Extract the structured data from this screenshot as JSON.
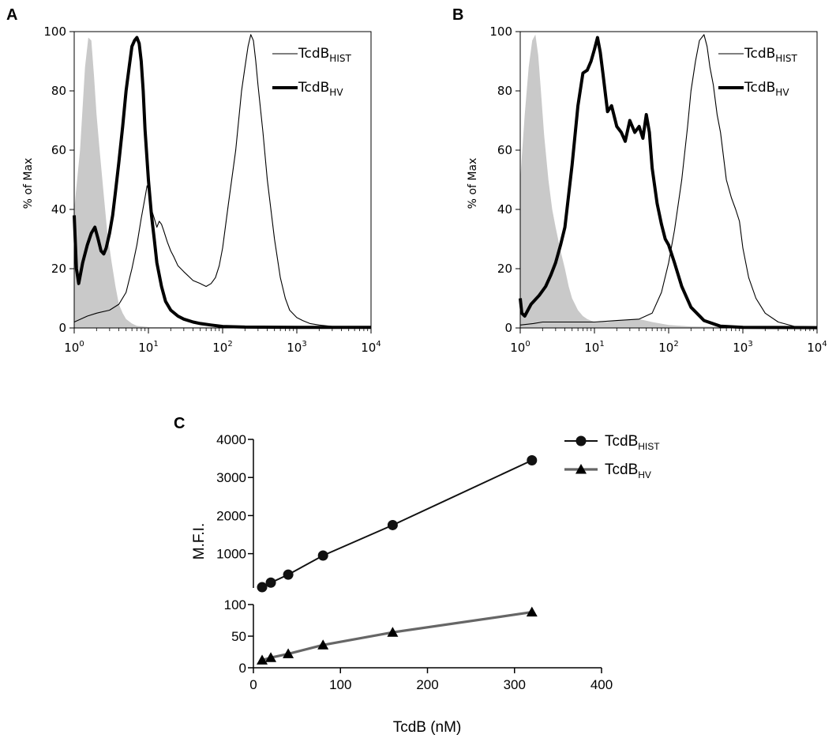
{
  "chart_data": [
    {
      "panel": "A",
      "type": "area",
      "ylabel": "% of Max",
      "ylim": [
        0,
        100
      ],
      "yticks": [
        "0",
        "20",
        "40",
        "60",
        "80",
        "100"
      ],
      "xscale": "log",
      "xlim": [
        1,
        10000
      ],
      "xticks": [
        {
          "base": "10",
          "exp": "0"
        },
        {
          "base": "10",
          "exp": "1"
        },
        {
          "base": "10",
          "exp": "2"
        },
        {
          "base": "10",
          "exp": "3"
        },
        {
          "base": "10",
          "exp": "4"
        }
      ],
      "legend": [
        {
          "base": "TcdB",
          "sub": "HIST",
          "style": "thin"
        },
        {
          "base": "TcdB",
          "sub": "HV",
          "style": "thick"
        }
      ],
      "series": [
        {
          "style": "filled-gray",
          "x": [
            1.0,
            1.2,
            1.4,
            1.55,
            1.7,
            1.85,
            2.0,
            2.2,
            2.5,
            2.8,
            3.2,
            3.6,
            4.0,
            4.5,
            5.0,
            6.0,
            7.0,
            10,
            100,
            10000
          ],
          "y": [
            40,
            60,
            88,
            98,
            97,
            85,
            72,
            60,
            45,
            32,
            22,
            14,
            8,
            5,
            3,
            1.5,
            0.7,
            0.3,
            0.2,
            0.2
          ]
        },
        {
          "name": "TcdB_HIST",
          "style": "thin",
          "x": [
            1.0,
            1.5,
            2.0,
            3.0,
            4.0,
            5.0,
            6.0,
            7.0,
            8.0,
            9.0,
            9.6,
            10,
            10.5,
            11,
            12,
            13,
            14,
            15,
            16,
            18,
            20,
            22,
            25,
            30,
            40,
            50,
            60,
            70,
            80,
            90,
            100,
            120,
            150,
            180,
            200,
            220,
            240,
            260,
            280,
            300,
            350,
            400,
            500,
            600,
            700,
            800,
            1000,
            1200,
            1500,
            2000,
            3000,
            5000,
            10000
          ],
          "y": [
            2,
            4,
            5,
            6,
            8,
            12,
            20,
            28,
            37,
            44,
            48,
            47,
            44,
            40,
            37,
            34,
            36,
            35,
            33,
            29,
            26,
            24,
            21,
            19,
            16,
            15,
            14,
            15,
            17,
            21,
            27,
            42,
            60,
            80,
            88,
            95,
            99,
            97,
            90,
            82,
            66,
            50,
            30,
            17,
            10,
            6,
            3.5,
            2.5,
            1.5,
            1,
            0.5,
            0.2,
            0
          ]
        },
        {
          "name": "TcdB_HV",
          "style": "thick",
          "x": [
            1.0,
            1.07,
            1.15,
            1.3,
            1.5,
            1.7,
            1.9,
            2.1,
            2.3,
            2.5,
            2.7,
            3.0,
            3.3,
            3.6,
            4.0,
            4.5,
            5.0,
            5.5,
            6.0,
            6.5,
            7.0,
            7.5,
            8.0,
            8.5,
            9.0,
            10,
            11,
            12,
            13,
            15,
            17,
            20,
            25,
            30,
            40,
            50,
            70,
            100,
            200,
            1000,
            10000
          ],
          "y": [
            38,
            20,
            15,
            22,
            28,
            32,
            34,
            30,
            26,
            25,
            27,
            32,
            38,
            46,
            56,
            68,
            80,
            88,
            95,
            97,
            98,
            96,
            90,
            80,
            67,
            50,
            38,
            30,
            22,
            14,
            9,
            6,
            4,
            3,
            2,
            1.5,
            1,
            0.5,
            0.3,
            0.2,
            0.2
          ]
        }
      ]
    },
    {
      "panel": "B",
      "type": "area",
      "ylabel": "% of Max",
      "ylim": [
        0,
        100
      ],
      "yticks": [
        "0",
        "20",
        "40",
        "60",
        "80",
        "100"
      ],
      "xscale": "log",
      "xlim": [
        1,
        10000
      ],
      "xticks": [
        {
          "base": "10",
          "exp": "0"
        },
        {
          "base": "10",
          "exp": "1"
        },
        {
          "base": "10",
          "exp": "2"
        },
        {
          "base": "10",
          "exp": "3"
        },
        {
          "base": "10",
          "exp": "4"
        }
      ],
      "legend": [
        {
          "base": "TcdB",
          "sub": "HIST",
          "style": "thin"
        },
        {
          "base": "TcdB",
          "sub": "HV",
          "style": "thick"
        }
      ],
      "series": [
        {
          "style": "filled-gray",
          "x": [
            1.0,
            1.15,
            1.3,
            1.45,
            1.6,
            1.75,
            1.9,
            2.1,
            2.4,
            2.7,
            3.0,
            3.5,
            4.0,
            4.5,
            5.0,
            6.0,
            7.0,
            8.0,
            10,
            15,
            20,
            40,
            60,
            100,
            200,
            10000
          ],
          "y": [
            50,
            72,
            88,
            97,
            99,
            92,
            80,
            65,
            50,
            40,
            34,
            26,
            20,
            14,
            10,
            6,
            4,
            3,
            2,
            2,
            2.5,
            3,
            2,
            1,
            0.5,
            0.2
          ]
        },
        {
          "name": "TcdB_HIST",
          "style": "thin",
          "x": [
            1.0,
            1.5,
            2,
            5,
            10,
            20,
            40,
            60,
            80,
            100,
            120,
            150,
            180,
            200,
            230,
            260,
            300,
            330,
            360,
            400,
            450,
            500,
            600,
            700,
            800,
            900,
            1000,
            1200,
            1500,
            2000,
            3000,
            5000,
            10000
          ],
          "y": [
            1,
            1.5,
            2,
            2,
            2,
            2.5,
            3,
            5,
            12,
            22,
            33,
            50,
            68,
            80,
            90,
            97,
            99,
            95,
            88,
            82,
            72,
            66,
            50,
            44,
            40,
            36,
            27,
            17,
            10,
            5,
            2,
            0.5,
            0
          ]
        },
        {
          "name": "TcdB_HV",
          "style": "thick",
          "x": [
            1.0,
            1.05,
            1.15,
            1.4,
            1.8,
            2.2,
            2.6,
            3.0,
            3.5,
            4.0,
            5.0,
            6.0,
            7.0,
            8.0,
            9.0,
            10,
            11,
            12,
            13,
            15,
            17,
            20,
            23,
            26,
            30,
            35,
            40,
            45,
            50,
            55,
            60,
            70,
            80,
            90,
            100,
            120,
            150,
            200,
            300,
            500,
            1000,
            10000
          ],
          "y": [
            10,
            5,
            4,
            8,
            11,
            14,
            18,
            22,
            28,
            34,
            55,
            75,
            86,
            87,
            90,
            94,
            98,
            93,
            86,
            73,
            75,
            68,
            66,
            63,
            70,
            66,
            68,
            64,
            72,
            66,
            54,
            42,
            35,
            30,
            28,
            22,
            14,
            7,
            2.5,
            0.6,
            0.2,
            0.1
          ]
        }
      ]
    },
    {
      "panel": "C",
      "type": "line",
      "xlabel": "TcdB (nM)",
      "ylabel": "M.F.I.",
      "xlim": [
        0,
        400
      ],
      "xticks": [
        "0",
        "100",
        "200",
        "300",
        "400"
      ],
      "y_segments": [
        {
          "range": [
            0,
            100
          ],
          "ticks": [
            "0",
            "50",
            "100"
          ]
        },
        {
          "range": [
            100,
            4000
          ],
          "ticks": [
            "1000",
            "2000",
            "3000",
            "4000"
          ]
        }
      ],
      "legend": [
        {
          "base": "TcdB",
          "sub": "HIST",
          "marker": "circle",
          "color": "#111111"
        },
        {
          "base": "TcdB",
          "sub": "HV",
          "marker": "triangle",
          "color": "#666666"
        }
      ],
      "series": [
        {
          "name": "TcdB_HIST",
          "marker": "circle",
          "color": "#111111",
          "x": [
            10,
            20,
            40,
            80,
            160,
            320
          ],
          "y": [
            120,
            240,
            450,
            950,
            1750,
            3450
          ]
        },
        {
          "name": "TcdB_HV",
          "marker": "triangle",
          "color": "#666666",
          "x": [
            10,
            20,
            40,
            80,
            160,
            320
          ],
          "y": [
            12,
            16,
            22,
            36,
            56,
            88
          ]
        }
      ]
    }
  ]
}
